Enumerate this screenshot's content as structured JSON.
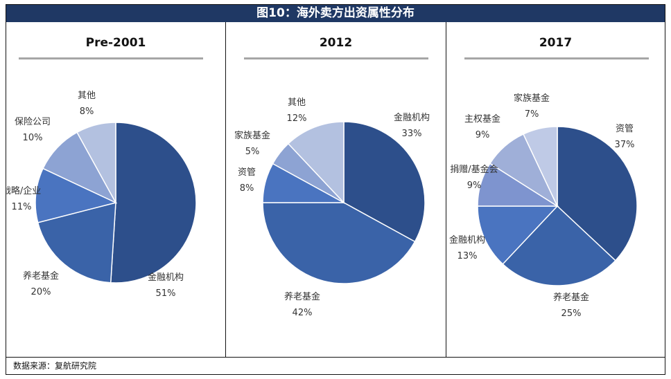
{
  "title": "图10：海外卖方出资属性分布",
  "source": "数据来源：复航研究院",
  "colors": [
    "#2d4f8b",
    "#3a63a8",
    "#4a74c0",
    "#8da3d3",
    "#b3c1e0",
    "#a8b6d8"
  ],
  "chart_data": [
    {
      "type": "pie",
      "title": "Pre-2001",
      "slices": [
        {
          "label": "金融机构",
          "pct": "51%",
          "value": 51,
          "color": "#2d4f8b"
        },
        {
          "label": "养老基金",
          "pct": "20%",
          "value": 20,
          "color": "#3a63a8"
        },
        {
          "label": "战略/企业",
          "pct": "11%",
          "value": 11,
          "color": "#4a74c0"
        },
        {
          "label": "保险公司",
          "pct": "10%",
          "value": 10,
          "color": "#8da3d3"
        },
        {
          "label": "其他",
          "pct": "8%",
          "value": 8,
          "color": "#b3c1e0"
        }
      ]
    },
    {
      "type": "pie",
      "title": "2012",
      "slices": [
        {
          "label": "金融机构",
          "pct": "33%",
          "value": 33,
          "color": "#2d4f8b"
        },
        {
          "label": "养老基金",
          "pct": "42%",
          "value": 42,
          "color": "#3a63a8"
        },
        {
          "label": "资管",
          "pct": "8%",
          "value": 8,
          "color": "#4a74c0"
        },
        {
          "label": "家族基金",
          "pct": "5%",
          "value": 5,
          "color": "#8da3d3"
        },
        {
          "label": "其他",
          "pct": "12%",
          "value": 12,
          "color": "#b3c1e0"
        }
      ]
    },
    {
      "type": "pie",
      "title": "2017",
      "slices": [
        {
          "label": "资管",
          "pct": "37%",
          "value": 37,
          "color": "#2d4f8b"
        },
        {
          "label": "养老基金",
          "pct": "25%",
          "value": 25,
          "color": "#3a63a8"
        },
        {
          "label": "金融机构",
          "pct": "13%",
          "value": 13,
          "color": "#4a74c0"
        },
        {
          "label": "捐赠/基金会",
          "pct": "9%",
          "value": 9,
          "color": "#7e94cf"
        },
        {
          "label": "主权基金",
          "pct": "9%",
          "value": 9,
          "color": "#9fafd8"
        },
        {
          "label": "家族基金",
          "pct": "7%",
          "value": 7,
          "color": "#bfcae6"
        }
      ]
    }
  ]
}
